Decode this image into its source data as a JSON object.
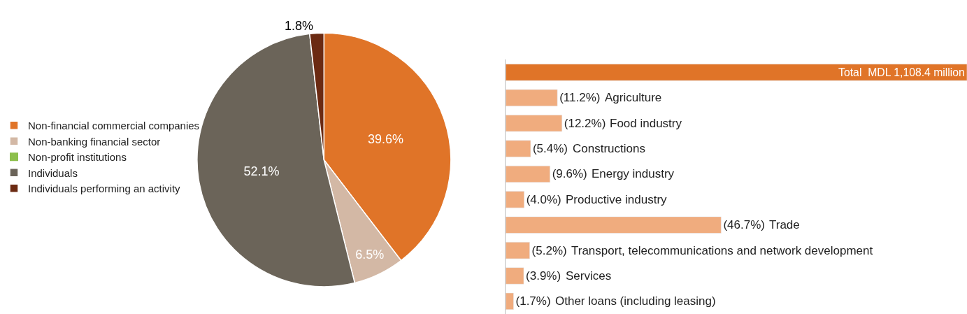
{
  "chart_data": [
    {
      "type": "pie",
      "categories": [
        "Non-financial commercial companies",
        "Non-banking financial sector",
        "Non-profit institutions",
        "Individuals",
        "Individuals performing an activity"
      ],
      "values": [
        39.6,
        6.5,
        0,
        52.1,
        1.8
      ],
      "value_labels": [
        "39.6%",
        "6.5%",
        null,
        "52.1%",
        "1.8%"
      ],
      "colors": [
        "#e07428",
        "#d3b8a5",
        "#8dbf4c",
        "#6b6459",
        "#6b2a12"
      ],
      "legend": "left"
    },
    {
      "type": "bar",
      "orientation": "horizontal",
      "tick_labels": false,
      "xlim": [
        0,
        100
      ],
      "categories": [
        "Total  MDL 1,108.4 million",
        "Agriculture",
        "Food industry",
        "Constructions",
        "Energy industry",
        "Productive industry",
        "Trade",
        "Transport, telecommunications and network development",
        "Services",
        "Other loans (including leasing)"
      ],
      "value_labels": [
        null,
        "(11.2%)",
        "(12.2%)",
        "(5.4%)",
        "(9.6%)",
        "(4.0%)",
        "(46.7%)",
        "(5.2%)",
        "(3.9%)",
        "(1.7%)"
      ],
      "values": [
        100,
        11.2,
        12.2,
        5.4,
        9.6,
        4.0,
        46.7,
        5.2,
        3.9,
        1.7
      ],
      "colors": [
        "#e07428",
        "#f0ac7e",
        "#f0ac7e",
        "#f0ac7e",
        "#f0ac7e",
        "#f0ac7e",
        "#f0ac7e",
        "#f0ac7e",
        "#f0ac7e",
        "#f0ac7e"
      ]
    }
  ]
}
